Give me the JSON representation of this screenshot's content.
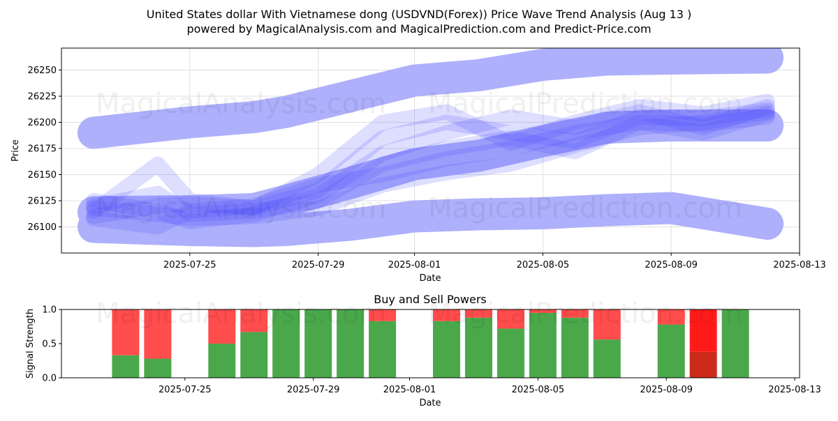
{
  "header": {
    "title": "United States dollar With Vietnamese dong (USDVND(Forex)) Price Wave Trend Analysis (Aug 13 )",
    "subtitle": "powered by MagicalAnalysis.com and MagicalPrediction.com and Predict-Price.com"
  },
  "watermarks": [
    "MagicalAnalysis.com",
    "MagicalPrediction.com"
  ],
  "chart_data": [
    {
      "type": "area",
      "xlabel": "Date",
      "ylabel": "Price",
      "x_ticks": [
        "2025-07-25",
        "2025-07-29",
        "2025-08-01",
        "2025-08-05",
        "2025-08-09",
        "2025-08-13"
      ],
      "y_ticks": [
        26100,
        26125,
        26150,
        26175,
        26200,
        26225,
        26250
      ],
      "xlim": [
        "2025-07-21",
        "2025-08-13"
      ],
      "ylim": [
        26075,
        26271
      ],
      "grid": true,
      "band_color": "#aeb0fb",
      "wave_color": "#4646ff",
      "bands": [
        {
          "x": [
            "2025-07-22",
            "2025-07-25",
            "2025-07-27",
            "2025-07-28",
            "2025-07-30",
            "2025-08-01",
            "2025-08-03",
            "2025-08-05",
            "2025-08-07",
            "2025-08-09",
            "2025-08-12"
          ],
          "y": [
            26190,
            26200,
            26205,
            26210,
            26225,
            26240,
            26245,
            26255,
            26260,
            26261,
            26262
          ]
        },
        {
          "x": [
            "2025-07-22",
            "2025-07-25",
            "2025-07-27",
            "2025-07-28",
            "2025-07-30",
            "2025-08-01",
            "2025-08-03",
            "2025-08-05",
            "2025-08-07",
            "2025-08-09",
            "2025-08-12"
          ],
          "y": [
            26114,
            26115,
            26117,
            26125,
            26142,
            26160,
            26168,
            26182,
            26195,
            26197,
            26197
          ]
        },
        {
          "x": [
            "2025-07-22",
            "2025-07-25",
            "2025-07-27",
            "2025-07-28",
            "2025-07-30",
            "2025-08-01",
            "2025-08-03",
            "2025-08-05",
            "2025-08-07",
            "2025-08-09",
            "2025-08-12"
          ],
          "y": [
            26100,
            26097,
            26096,
            26097,
            26102,
            26110,
            26112,
            26113,
            26116,
            26118,
            26103
          ]
        }
      ],
      "waves": [
        {
          "x": [
            "2025-07-22",
            "2025-07-24",
            "2025-07-25",
            "2025-07-27",
            "2025-07-29",
            "2025-07-31",
            "2025-08-02",
            "2025-08-04",
            "2025-08-06",
            "2025-08-08",
            "2025-08-10",
            "2025-08-12"
          ],
          "y": [
            26118,
            26112,
            26108,
            26110,
            26118,
            26140,
            26152,
            26160,
            26178,
            26195,
            26200,
            26210
          ]
        },
        {
          "x": [
            "2025-07-22",
            "2025-07-24",
            "2025-07-25",
            "2025-07-27",
            "2025-07-29",
            "2025-07-31",
            "2025-08-02",
            "2025-08-04",
            "2025-08-06",
            "2025-08-08",
            "2025-08-10",
            "2025-08-12"
          ],
          "y": [
            26120,
            26132,
            26112,
            26115,
            26125,
            26160,
            26175,
            26185,
            26172,
            26200,
            26198,
            26205
          ]
        },
        {
          "x": [
            "2025-07-22",
            "2025-07-24",
            "2025-07-25",
            "2025-07-27",
            "2025-07-29",
            "2025-07-31",
            "2025-08-02",
            "2025-08-04",
            "2025-08-06",
            "2025-08-08",
            "2025-08-10",
            "2025-08-12"
          ],
          "y": [
            26110,
            26120,
            26122,
            26118,
            26135,
            26185,
            26200,
            26190,
            26182,
            26205,
            26204,
            26212
          ]
        },
        {
          "x": [
            "2025-07-22",
            "2025-07-24",
            "2025-07-25",
            "2025-07-27",
            "2025-07-29",
            "2025-07-31",
            "2025-08-02",
            "2025-08-04",
            "2025-08-06",
            "2025-08-08",
            "2025-08-10",
            "2025-08-12"
          ],
          "y": [
            26125,
            26115,
            26105,
            26112,
            26130,
            26170,
            26190,
            26205,
            26195,
            26210,
            26195,
            26215
          ]
        },
        {
          "x": [
            "2025-07-22",
            "2025-07-24",
            "2025-07-25",
            "2025-07-27",
            "2025-07-29",
            "2025-07-31",
            "2025-08-02",
            "2025-08-04",
            "2025-08-06",
            "2025-08-08",
            "2025-08-10",
            "2025-08-12"
          ],
          "y": [
            26108,
            26100,
            26115,
            26120,
            26140,
            26150,
            26165,
            26175,
            26190,
            26200,
            26190,
            26208
          ]
        },
        {
          "x": [
            "2025-07-22",
            "2025-07-24",
            "2025-07-25",
            "2025-07-27",
            "2025-07-29",
            "2025-07-31",
            "2025-08-02",
            "2025-08-04",
            "2025-08-06",
            "2025-08-08",
            "2025-08-10",
            "2025-08-12"
          ],
          "y": [
            26115,
            26160,
            26125,
            26118,
            26150,
            26200,
            26210,
            26180,
            26200,
            26215,
            26208,
            26220
          ]
        }
      ]
    },
    {
      "type": "bar",
      "title": "Buy and Sell Powers",
      "xlabel": "Date",
      "ylabel": "Signal Strength",
      "x_ticks": [
        "2025-07-25",
        "2025-07-29",
        "2025-08-01",
        "2025-08-05",
        "2025-08-09",
        "2025-08-13"
      ],
      "y_ticks": [
        "0.0",
        "0.5",
        "1.0"
      ],
      "xlim": [
        "2025-07-21",
        "2025-08-13"
      ],
      "ylim": [
        0,
        1
      ],
      "buy_color": "#4aa84a",
      "sell_color": "#ff4c4c",
      "strong_sell_color": "#ff1a1a",
      "strong_sell_dark_color": "#cc2a1a",
      "dates": [
        "2025-07-23",
        "2025-07-24",
        "2025-07-26",
        "2025-07-27",
        "2025-07-28",
        "2025-07-29",
        "2025-07-30",
        "2025-07-31",
        "2025-08-02",
        "2025-08-03",
        "2025-08-04",
        "2025-08-05",
        "2025-08-06",
        "2025-08-07",
        "2025-08-09",
        "2025-08-10",
        "2025-08-11"
      ],
      "buy": [
        0.33,
        0.28,
        0.5,
        0.67,
        1.0,
        1.0,
        1.0,
        0.83,
        0.83,
        0.88,
        0.72,
        0.95,
        0.88,
        0.56,
        0.78,
        0.38,
        1.0
      ],
      "sell": [
        0.67,
        0.72,
        0.5,
        0.33,
        0.0,
        0.0,
        0.0,
        0.17,
        0.17,
        0.12,
        0.28,
        0.05,
        0.12,
        0.44,
        0.22,
        0.62,
        0.0
      ],
      "strong": [
        false,
        false,
        false,
        false,
        false,
        false,
        false,
        false,
        false,
        false,
        false,
        false,
        false,
        false,
        false,
        true,
        false
      ]
    }
  ]
}
